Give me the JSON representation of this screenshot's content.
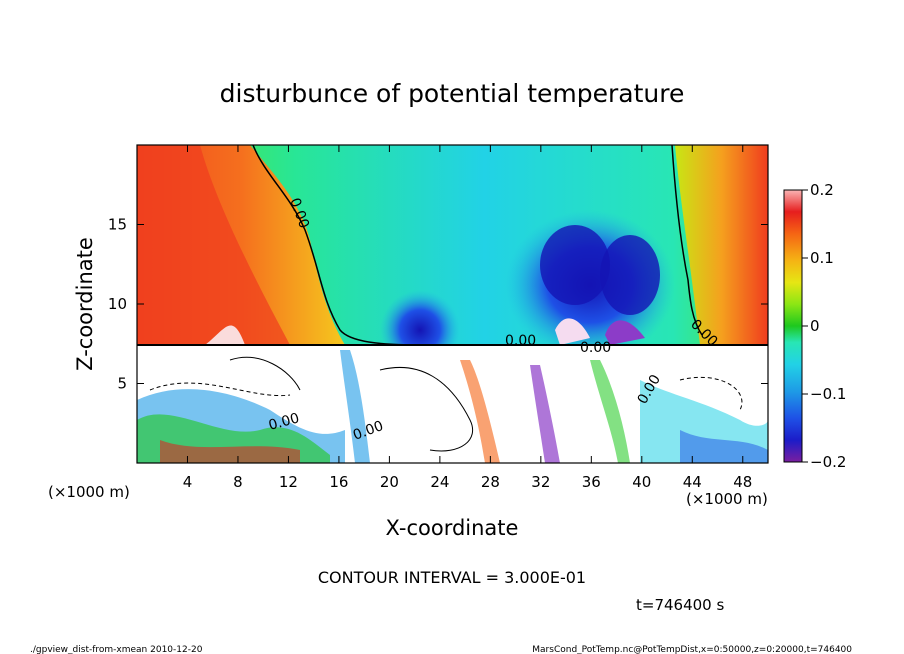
{
  "chart_data": {
    "type": "heatmap",
    "title": "disturbunce of potential temperature",
    "xlabel": "X-coordinate",
    "ylabel": "Z-coordinate",
    "x_unit_left": "(×1000 m)",
    "x_unit_right": "(×1000 m)",
    "xlim": [
      0,
      50
    ],
    "ylim": [
      0,
      20
    ],
    "x_ticks": [
      4,
      8,
      12,
      16,
      20,
      24,
      28,
      32,
      36,
      40,
      44,
      48
    ],
    "y_ticks": [
      5,
      10,
      15
    ],
    "colorbar": {
      "range": [
        -0.2,
        0.2
      ],
      "tick_labels": [
        "0.2",
        "0.1",
        "0",
        "−0.1",
        "−0.2"
      ],
      "tick_values": [
        0.2,
        0.1,
        0,
        -0.1,
        -0.2
      ]
    },
    "contour_labels": [
      "0.00",
      "0.00",
      "0.00",
      "0.00",
      "0.00",
      "0.00",
      "0.00"
    ],
    "contour_interval_text": "CONTOUR INTERVAL = 3.000E-01",
    "time_text": "t=746400 s"
  },
  "footer": {
    "left": "./gpview_dist-from-xmean  2010-12-20",
    "right": "MarsCond_PotTemp.nc@PotTempDist,x=0:50000,z=0:20000,t=746400"
  }
}
